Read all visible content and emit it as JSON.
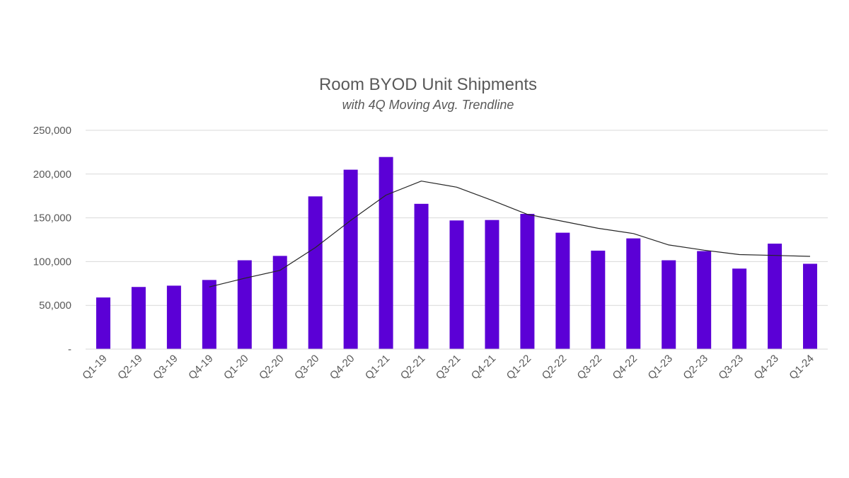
{
  "chart_data": {
    "type": "bar",
    "title": "Room BYOD Unit Shipments",
    "subtitle": "with 4Q Moving Avg. Trendline",
    "xlabel": "",
    "ylabel": "",
    "ylim": [
      0,
      250000
    ],
    "y_ticks": [
      0,
      50000,
      100000,
      150000,
      200000,
      250000
    ],
    "y_tick_labels": [
      "-",
      "50,000",
      "100,000",
      "150,000",
      "200,000",
      "250,000"
    ],
    "grid": true,
    "legend": "none",
    "categories": [
      "Q1-19",
      "Q2-19",
      "Q3-19",
      "Q4-19",
      "Q1-20",
      "Q2-20",
      "Q3-20",
      "Q4-20",
      "Q1-21",
      "Q2-21",
      "Q3-21",
      "Q4-21",
      "Q1-22",
      "Q2-22",
      "Q3-22",
      "Q4-22",
      "Q1-23",
      "Q2-23",
      "Q3-23",
      "Q4-23",
      "Q1-24"
    ],
    "series": [
      {
        "type": "bar",
        "color": "#5b00d6",
        "values": [
          59000,
          71000,
          72500,
          79000,
          101500,
          106500,
          174500,
          205000,
          219500,
          166000,
          147000,
          147500,
          154500,
          133000,
          112500,
          126500,
          101500,
          112000,
          92000,
          120500,
          97500
        ]
      },
      {
        "type": "line",
        "trendline": "4Q moving average",
        "color": "#262626",
        "start_index": 3,
        "values": [
          null,
          null,
          null,
          71000,
          81000,
          90000,
          116000,
          147000,
          176000,
          192000,
          185000,
          170000,
          154000,
          146000,
          138000,
          132000,
          119000,
          113000,
          108000,
          107000,
          106000
        ]
      }
    ]
  }
}
